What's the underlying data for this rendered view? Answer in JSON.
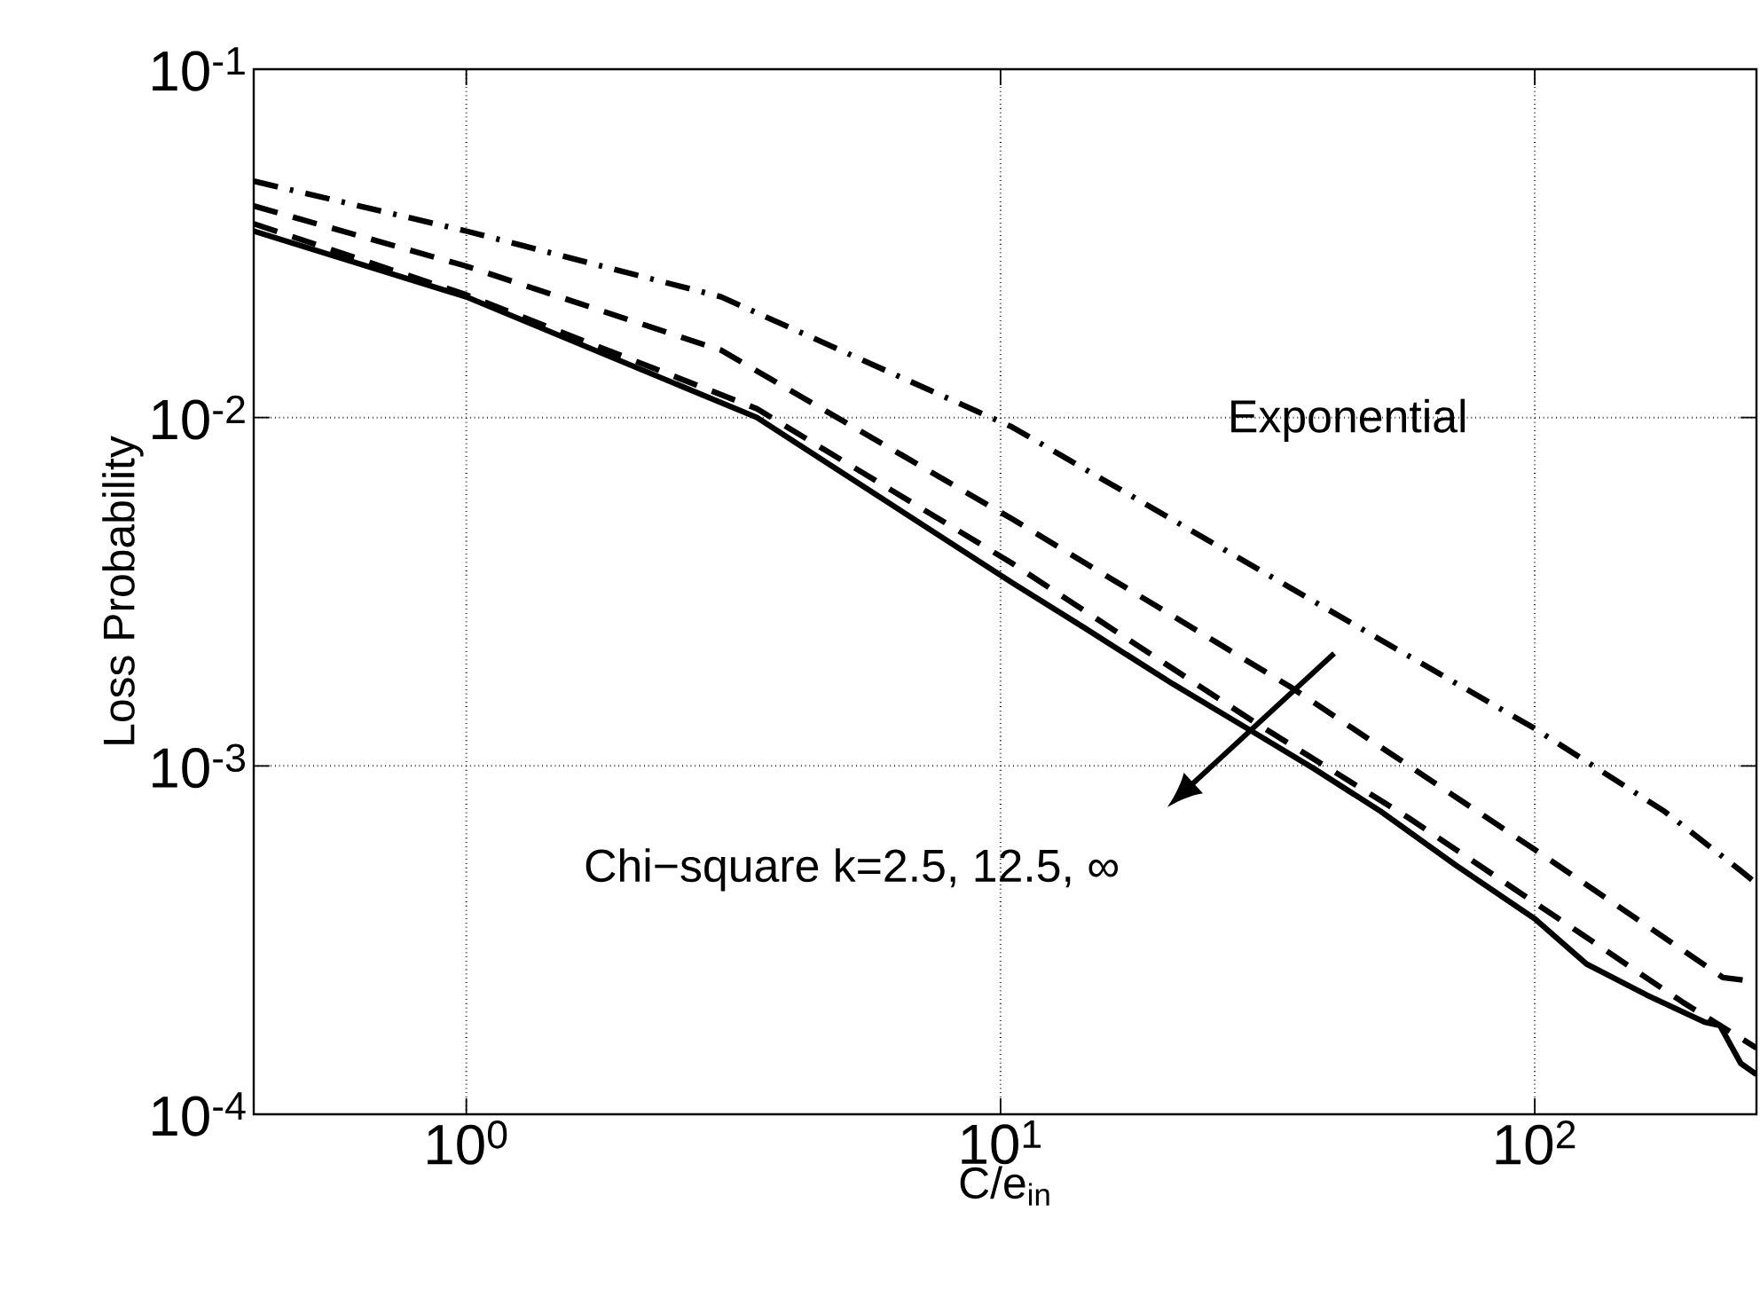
{
  "chart_data": {
    "type": "line",
    "xlabel": "C/e$_{in}$",
    "ylabel": "Loss Probability",
    "log": "xy",
    "grid": true,
    "xlim": [
      0.4,
      260
    ],
    "ylim": [
      0.0001,
      0.1
    ],
    "xticks": [
      {
        "value": 1,
        "label": "10$^{0}$"
      },
      {
        "value": 10,
        "label": "10$^{1}$"
      },
      {
        "value": 100,
        "label": "10$^{2}$"
      }
    ],
    "yticks": [
      {
        "value": 0.0001,
        "label": "10$^{-4}$"
      },
      {
        "value": 0.001,
        "label": "10$^{-3}$"
      },
      {
        "value": 0.01,
        "label": "10$^{-2}$"
      },
      {
        "value": 0.1,
        "label": "10$^{-1}$"
      }
    ],
    "annotations": [
      "Chi−square k=2.5, 12.5, ∞"
    ],
    "series": [
      {
        "name": "Exponential",
        "color": "#000000",
        "line_style": "dashdot",
        "x": [
          0.4,
          1,
          3,
          10.5,
          45,
          100,
          175,
          243,
          260
        ],
        "values": [
          0.0477,
          0.0343,
          0.0222,
          0.0094,
          0.00259,
          0.00128,
          0.00074,
          0.0005,
          0.00046
        ]
      },
      {
        "color": "#000000",
        "line_style": "dashed",
        "x": [
          0.4,
          1,
          3,
          10.5,
          35,
          100,
          225,
          260
        ],
        "values": [
          0.0405,
          0.0272,
          0.0156,
          0.00512,
          0.00168,
          0.000575,
          0.000247,
          0.00024
        ]
      },
      {
        "color": "#000000",
        "line_style": "dashed",
        "x": [
          0.4,
          1,
          3.5,
          10.5,
          30,
          58,
          100,
          189,
          260
        ],
        "values": [
          0.036,
          0.0225,
          0.0106,
          0.00382,
          0.00133,
          0.00071,
          0.000405,
          0.00021,
          0.000155
        ]
      },
      {
        "color": "#000000",
        "line_style": "solid",
        "x": [
          0.4,
          1,
          3.5,
          10.5,
          14.3,
          21,
          30,
          38.7,
          51.5,
          71,
          100,
          125,
          162,
          208,
          222,
          243,
          260
        ],
        "values": [
          0.0343,
          0.0222,
          0.01,
          0.00336,
          0.0025,
          0.00172,
          0.00124,
          0.00098,
          0.00074,
          0.00052,
          0.000364,
          0.00027,
          0.00022,
          0.000184,
          0.00018,
          0.00014,
          0.00013
        ]
      }
    ]
  }
}
